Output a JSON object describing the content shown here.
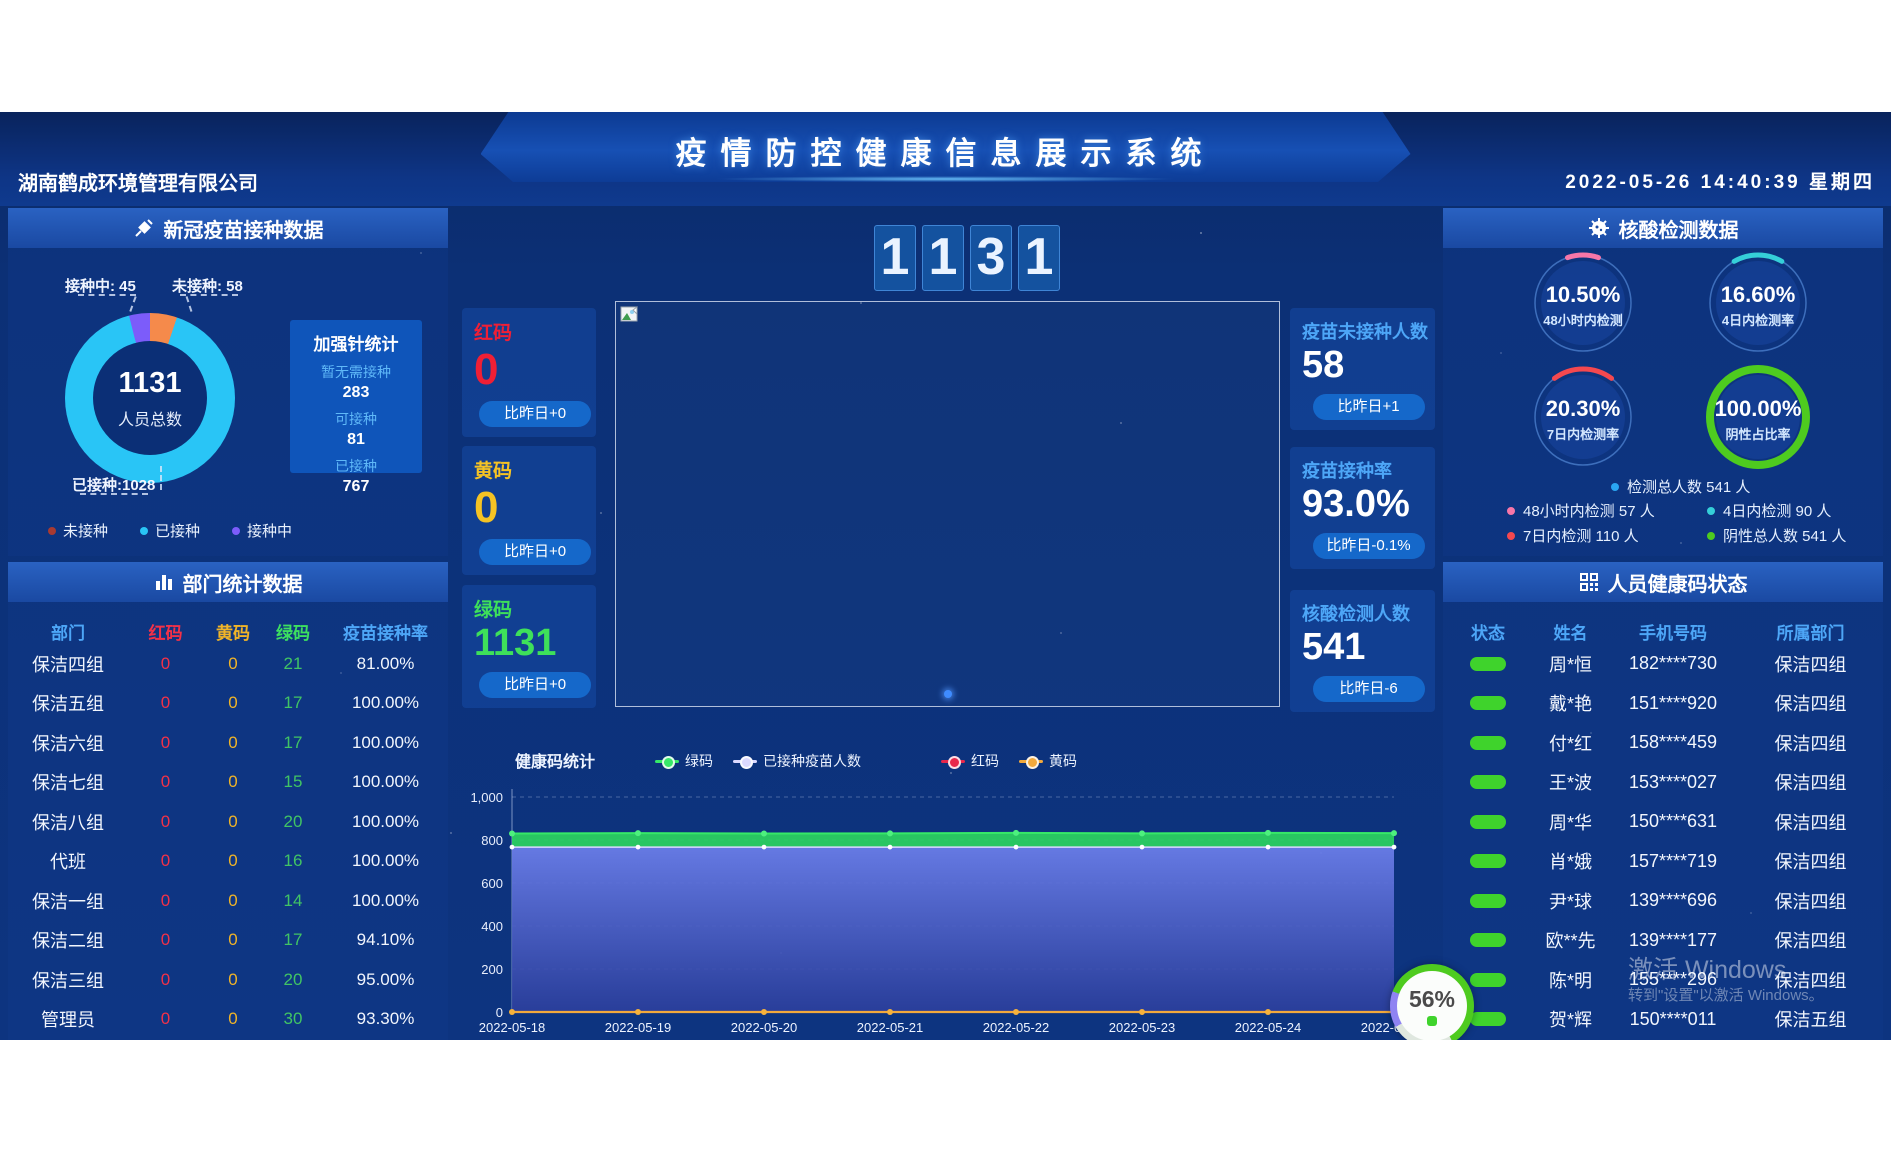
{
  "header": {
    "company": "湖南鹤成环境管理有限公司",
    "title": "疫情防控健康信息展示系统",
    "datetime": "2022-05-26 14:40:39 星期四"
  },
  "vaccine_panel": {
    "title": "新冠疫苗接种数据",
    "donut": {
      "total": "1131",
      "total_label": "人员总数",
      "callout_vaccinating": "接种中: 45",
      "callout_unvaccinated": "未接种: 58",
      "callout_vaccinated": "已接种:1028",
      "slices": [
        {
          "name": "未接种",
          "value": 58,
          "color": "#f58a4b"
        },
        {
          "name": "已接种",
          "value": 1028,
          "color": "#29c5f6"
        },
        {
          "name": "接种中",
          "value": 45,
          "color": "#7c5cfa"
        }
      ]
    },
    "legend": [
      {
        "label": "未接种",
        "color": "#a83a32"
      },
      {
        "label": "已接种",
        "color": "#29c5f6"
      },
      {
        "label": "接种中",
        "color": "#7c5cfa"
      }
    ],
    "booster": {
      "title": "加强针统计",
      "rows": [
        {
          "label": "暂无需接种",
          "value": "283"
        },
        {
          "label": "可接种",
          "value": "81"
        },
        {
          "label": "已接种",
          "value": "767"
        }
      ]
    }
  },
  "dept_panel": {
    "title": "部门统计数据",
    "columns": [
      {
        "label": "部门",
        "color": "#4da6f7"
      },
      {
        "label": "红码",
        "color": "#f23148"
      },
      {
        "label": "黄码",
        "color": "#f0b428"
      },
      {
        "label": "绿码",
        "color": "#3de05f"
      },
      {
        "label": "疫苗接种率",
        "color": "#4da6f7"
      }
    ],
    "value_colors": [
      "#f2f6fd",
      "#f23148",
      "#f0b428",
      "#41c464",
      "#f2f6fd"
    ],
    "rows": [
      [
        "保洁四组",
        "0",
        "0",
        "21",
        "81.00%"
      ],
      [
        "保洁五组",
        "0",
        "0",
        "17",
        "100.00%"
      ],
      [
        "保洁六组",
        "0",
        "0",
        "17",
        "100.00%"
      ],
      [
        "保洁七组",
        "0",
        "0",
        "15",
        "100.00%"
      ],
      [
        "保洁八组",
        "0",
        "0",
        "20",
        "100.00%"
      ],
      [
        "代班",
        "0",
        "0",
        "16",
        "100.00%"
      ],
      [
        "保洁一组",
        "0",
        "0",
        "14",
        "100.00%"
      ],
      [
        "保洁二组",
        "0",
        "0",
        "17",
        "94.10%"
      ],
      [
        "保洁三组",
        "0",
        "0",
        "20",
        "95.00%"
      ],
      [
        "管理员",
        "0",
        "0",
        "30",
        "93.30%"
      ]
    ]
  },
  "center": {
    "big_number_digits": [
      "1",
      "1",
      "3",
      "1"
    ],
    "left_stats": [
      {
        "label": "红码",
        "value": "0",
        "delta": "比昨日+0",
        "color": "#f01f35"
      },
      {
        "label": "黄码",
        "value": "0",
        "delta": "比昨日+0",
        "color": "#f5c324"
      },
      {
        "label": "绿码",
        "value": "1131",
        "delta": "比昨日+0",
        "color": "#3ee05a"
      }
    ],
    "right_stats": [
      {
        "label": "疫苗未接种人数",
        "value": "58",
        "delta": "比昨日+1"
      },
      {
        "label": "疫苗接种率",
        "value": "93.0%",
        "delta": "比昨日-0.1%"
      },
      {
        "label": "核酸检测人数",
        "value": "541",
        "delta": "比昨日-6"
      }
    ]
  },
  "chart_data": {
    "type": "line",
    "title": "健康码统计",
    "x": [
      "2022-05-18",
      "2022-05-19",
      "2022-05-20",
      "2022-05-21",
      "2022-05-22",
      "2022-05-23",
      "2022-05-24",
      "2022-05-25"
    ],
    "series": [
      {
        "name": "绿码",
        "color": "#36e868",
        "values": [
          830,
          832,
          830,
          831,
          833,
          831,
          833,
          832
        ]
      },
      {
        "name": "已接种疫苗人数",
        "color": "#dcd9ff",
        "values": [
          767,
          767,
          767,
          767,
          767,
          767,
          767,
          767
        ]
      },
      {
        "name": "红码",
        "color": "#e8274b",
        "values": [
          0,
          0,
          0,
          0,
          0,
          0,
          0,
          0
        ]
      },
      {
        "name": "黄码",
        "color": "#f2a93c",
        "values": [
          0,
          0,
          0,
          0,
          0,
          0,
          0,
          0
        ]
      }
    ],
    "ylim": [
      0,
      1000
    ],
    "yticks": [
      0,
      200,
      400,
      600,
      800,
      1000
    ],
    "ytick_labels": [
      "0",
      "200",
      "400",
      "600",
      "800",
      "1,000"
    ],
    "grid": "dashed",
    "legend_position": "top"
  },
  "nat_panel": {
    "title": "核酸检测数据",
    "gauges": [
      {
        "value": "10.50%",
        "label": "48小时内检测",
        "percent": 10.5,
        "color": "#f776a8",
        "thick": 5
      },
      {
        "value": "16.60%",
        "label": "4日内检测率",
        "percent": 16.6,
        "color": "#35cfd8",
        "thick": 5
      },
      {
        "value": "20.30%",
        "label": "7日内检测率",
        "percent": 20.3,
        "color": "#f4484f",
        "thick": 5
      },
      {
        "value": "100.00%",
        "label": "阴性占比率",
        "percent": 100,
        "color": "#4ecb1f",
        "thick": 8
      }
    ],
    "legend_total": {
      "label": "检测总人数",
      "value": "541 人",
      "color": "#2aa6f2"
    },
    "legend": [
      {
        "label": "48小时内检测",
        "value": "57 人",
        "color": "#f776a8"
      },
      {
        "label": "4日内检测",
        "value": "90 人",
        "color": "#35cfd8"
      },
      {
        "label": "7日内检测",
        "value": "110 人",
        "color": "#f4484f"
      },
      {
        "label": "阴性总人数",
        "value": "541 人",
        "color": "#4ecb1f"
      }
    ]
  },
  "health_panel": {
    "title": "人员健康码状态",
    "columns": [
      "状态",
      "姓名",
      "手机号码",
      "所属部门"
    ],
    "status_color": "#3fd32c",
    "rows": [
      {
        "name": "周*恒",
        "phone": "182****730",
        "dept": "保洁四组"
      },
      {
        "name": "戴*艳",
        "phone": "151****920",
        "dept": "保洁四组"
      },
      {
        "name": "付*红",
        "phone": "158****459",
        "dept": "保洁四组"
      },
      {
        "name": "王*波",
        "phone": "153****027",
        "dept": "保洁四组"
      },
      {
        "name": "周*华",
        "phone": "150****631",
        "dept": "保洁四组"
      },
      {
        "name": "肖*娥",
        "phone": "157****719",
        "dept": "保洁四组"
      },
      {
        "name": "尹*球",
        "phone": "139****696",
        "dept": "保洁四组"
      },
      {
        "name": "欧**先",
        "phone": "139****177",
        "dept": "保洁四组"
      },
      {
        "name": "陈*明",
        "phone": "155****296",
        "dept": "保洁四组"
      },
      {
        "name": "贺*辉",
        "phone": "150****011",
        "dept": "保洁五组"
      }
    ]
  },
  "overlay": {
    "watermark_line1": "激活 Windows",
    "watermark_line2": "转到\"设置\"以激活 Windows。",
    "battery_percent": "56%"
  }
}
